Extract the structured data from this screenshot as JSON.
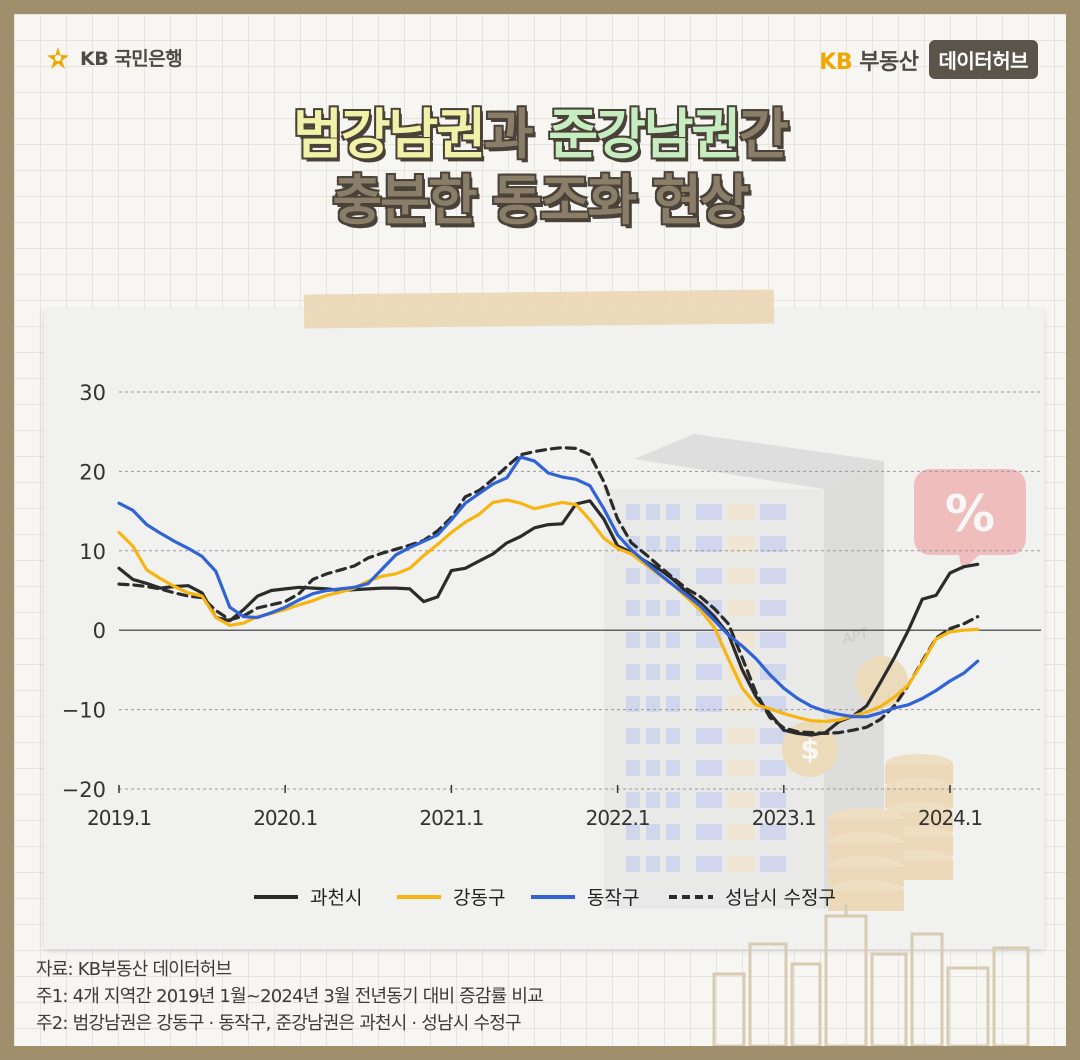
{
  "header": {
    "bank_name": "KB 국민은행",
    "service_kb": "KB",
    "service_name": "부동산",
    "badge": "데이터허브"
  },
  "title": {
    "line1_part1": "범강남권",
    "line1_part2": "과 ",
    "line1_part3": "준강남권",
    "line1_part4": "간",
    "line2": "충분한 동조화 현상"
  },
  "footnotes": {
    "source": "자료: KB부동산 데이터허브",
    "note1": "주1: 4개 지역간 2019년 1월~2024년 3월 전년동기 대비 증감률 비교",
    "note2": "주2: 범강남권은 강동구 · 동작구, 준강남권은 과천시 · 성남시 수정구"
  },
  "illustration": {
    "percent_icon": "%",
    "building_label": "APT",
    "coin_symbol": "$"
  },
  "colors": {
    "accent": "#f0a800",
    "black_series": "#2b2b2b",
    "yellow_series": "#f7b512",
    "blue_series": "#2f63d6",
    "dashed_series": "#2b2b2b",
    "frame": "#a08f6c"
  },
  "chart_data": {
    "type": "line",
    "title": "",
    "xlabel": "",
    "ylabel": "",
    "ylim": [
      -20,
      30
    ],
    "yticks": [
      30,
      20,
      10,
      0,
      -10,
      -20
    ],
    "ytick_labels": [
      "30",
      "20",
      "10",
      "0",
      "−10",
      "−20"
    ],
    "xticks": [
      "2019.1",
      "2020.1",
      "2021.1",
      "2022.1",
      "2023.1",
      "2024.1"
    ],
    "grid": "horizontal dashed",
    "legend_position": "bottom",
    "x": [
      "2019.1",
      "2019.2",
      "2019.3",
      "2019.4",
      "2019.5",
      "2019.6",
      "2019.7",
      "2019.8",
      "2019.9",
      "2019.10",
      "2019.11",
      "2019.12",
      "2020.1",
      "2020.2",
      "2020.3",
      "2020.4",
      "2020.5",
      "2020.6",
      "2020.7",
      "2020.8",
      "2020.9",
      "2020.10",
      "2020.11",
      "2020.12",
      "2021.1",
      "2021.2",
      "2021.3",
      "2021.4",
      "2021.5",
      "2021.6",
      "2021.7",
      "2021.8",
      "2021.9",
      "2021.10",
      "2021.11",
      "2021.12",
      "2022.1",
      "2022.2",
      "2022.3",
      "2022.4",
      "2022.5",
      "2022.6",
      "2022.7",
      "2022.8",
      "2022.9",
      "2022.10",
      "2022.11",
      "2022.12",
      "2023.1",
      "2023.2",
      "2023.3",
      "2023.4",
      "2023.5",
      "2023.6",
      "2023.7",
      "2023.8",
      "2023.9",
      "2023.10",
      "2023.11",
      "2023.12",
      "2024.1",
      "2024.2",
      "2024.3"
    ],
    "series": [
      {
        "name": "과천시",
        "style": "solid",
        "color": "#2b2b2b",
        "values": [
          7.8,
          6.4,
          5.9,
          5.3,
          5.5,
          5.6,
          4.7,
          1.6,
          1.2,
          2.6,
          4.3,
          5.0,
          5.2,
          5.4,
          5.3,
          5.2,
          5.0,
          5.1,
          5.2,
          5.3,
          5.3,
          5.2,
          3.6,
          4.2,
          7.5,
          7.8,
          8.7,
          9.6,
          11.0,
          11.8,
          12.9,
          13.3,
          13.4,
          15.9,
          16.3,
          14.0,
          10.6,
          9.8,
          8.7,
          7.7,
          6.4,
          4.8,
          3.4,
          1.7,
          -0.5,
          -5.0,
          -8.4,
          -10.5,
          -12.6,
          -13.0,
          -13.2,
          -12.9,
          -11.5,
          -10.8,
          -9.5,
          -6.5,
          -3.4,
          0.0,
          3.9,
          4.4,
          7.2,
          8.0,
          8.3
        ]
      },
      {
        "name": "강동구",
        "style": "solid",
        "color": "#f7b512",
        "values": [
          12.3,
          10.6,
          7.6,
          6.5,
          5.5,
          4.7,
          4.3,
          1.6,
          0.6,
          0.9,
          1.7,
          2.1,
          2.6,
          3.2,
          3.7,
          4.4,
          4.8,
          5.3,
          6.2,
          6.8,
          7.1,
          7.8,
          9.4,
          10.8,
          12.3,
          13.6,
          14.6,
          16.1,
          16.4,
          16.0,
          15.3,
          15.7,
          16.1,
          15.8,
          13.9,
          11.6,
          10.3,
          9.6,
          8.3,
          7.0,
          5.7,
          4.1,
          2.5,
          0.3,
          -3.6,
          -7.3,
          -9.4,
          -9.9,
          -10.5,
          -11.0,
          -11.4,
          -11.5,
          -11.3,
          -10.8,
          -10.3,
          -9.6,
          -8.4,
          -6.9,
          -4.1,
          -1.1,
          -0.2,
          0.0,
          0.1
        ]
      },
      {
        "name": "동작구",
        "style": "solid",
        "color": "#2f63d6",
        "values": [
          16.0,
          15.1,
          13.3,
          12.2,
          11.2,
          10.3,
          9.3,
          7.4,
          2.9,
          1.7,
          1.6,
          2.2,
          2.9,
          3.8,
          4.6,
          5.0,
          5.2,
          5.4,
          5.9,
          7.7,
          9.5,
          10.4,
          11.2,
          12.0,
          13.9,
          16.0,
          17.2,
          18.4,
          19.2,
          21.8,
          21.3,
          19.8,
          19.3,
          19.0,
          18.2,
          15.3,
          12.0,
          10.1,
          8.6,
          7.1,
          5.7,
          4.4,
          3.0,
          1.2,
          -0.6,
          -2.0,
          -3.6,
          -5.6,
          -7.3,
          -8.6,
          -9.6,
          -10.2,
          -10.6,
          -10.9,
          -10.9,
          -10.4,
          -9.8,
          -9.4,
          -8.6,
          -7.6,
          -6.4,
          -5.4,
          -3.9
        ]
      },
      {
        "name": "성남시 수정구",
        "style": "dashed",
        "color": "#2b2b2b",
        "values": [
          5.8,
          5.7,
          5.5,
          5.2,
          4.7,
          4.3,
          4.1,
          2.5,
          1.3,
          1.8,
          2.8,
          3.2,
          3.6,
          4.6,
          6.4,
          7.1,
          7.6,
          8.1,
          9.1,
          9.7,
          10.2,
          10.7,
          11.3,
          12.5,
          14.2,
          16.8,
          17.6,
          19.0,
          20.6,
          22.1,
          22.5,
          22.8,
          23.0,
          22.9,
          22.1,
          18.7,
          14.0,
          11.0,
          9.6,
          8.1,
          6.6,
          5.2,
          4.2,
          2.7,
          0.8,
          -3.5,
          -7.9,
          -11.0,
          -12.3,
          -12.8,
          -12.9,
          -13.0,
          -12.9,
          -12.6,
          -12.2,
          -11.2,
          -9.5,
          -6.9,
          -3.9,
          -1.0,
          0.2,
          0.8,
          1.7
        ]
      }
    ]
  }
}
